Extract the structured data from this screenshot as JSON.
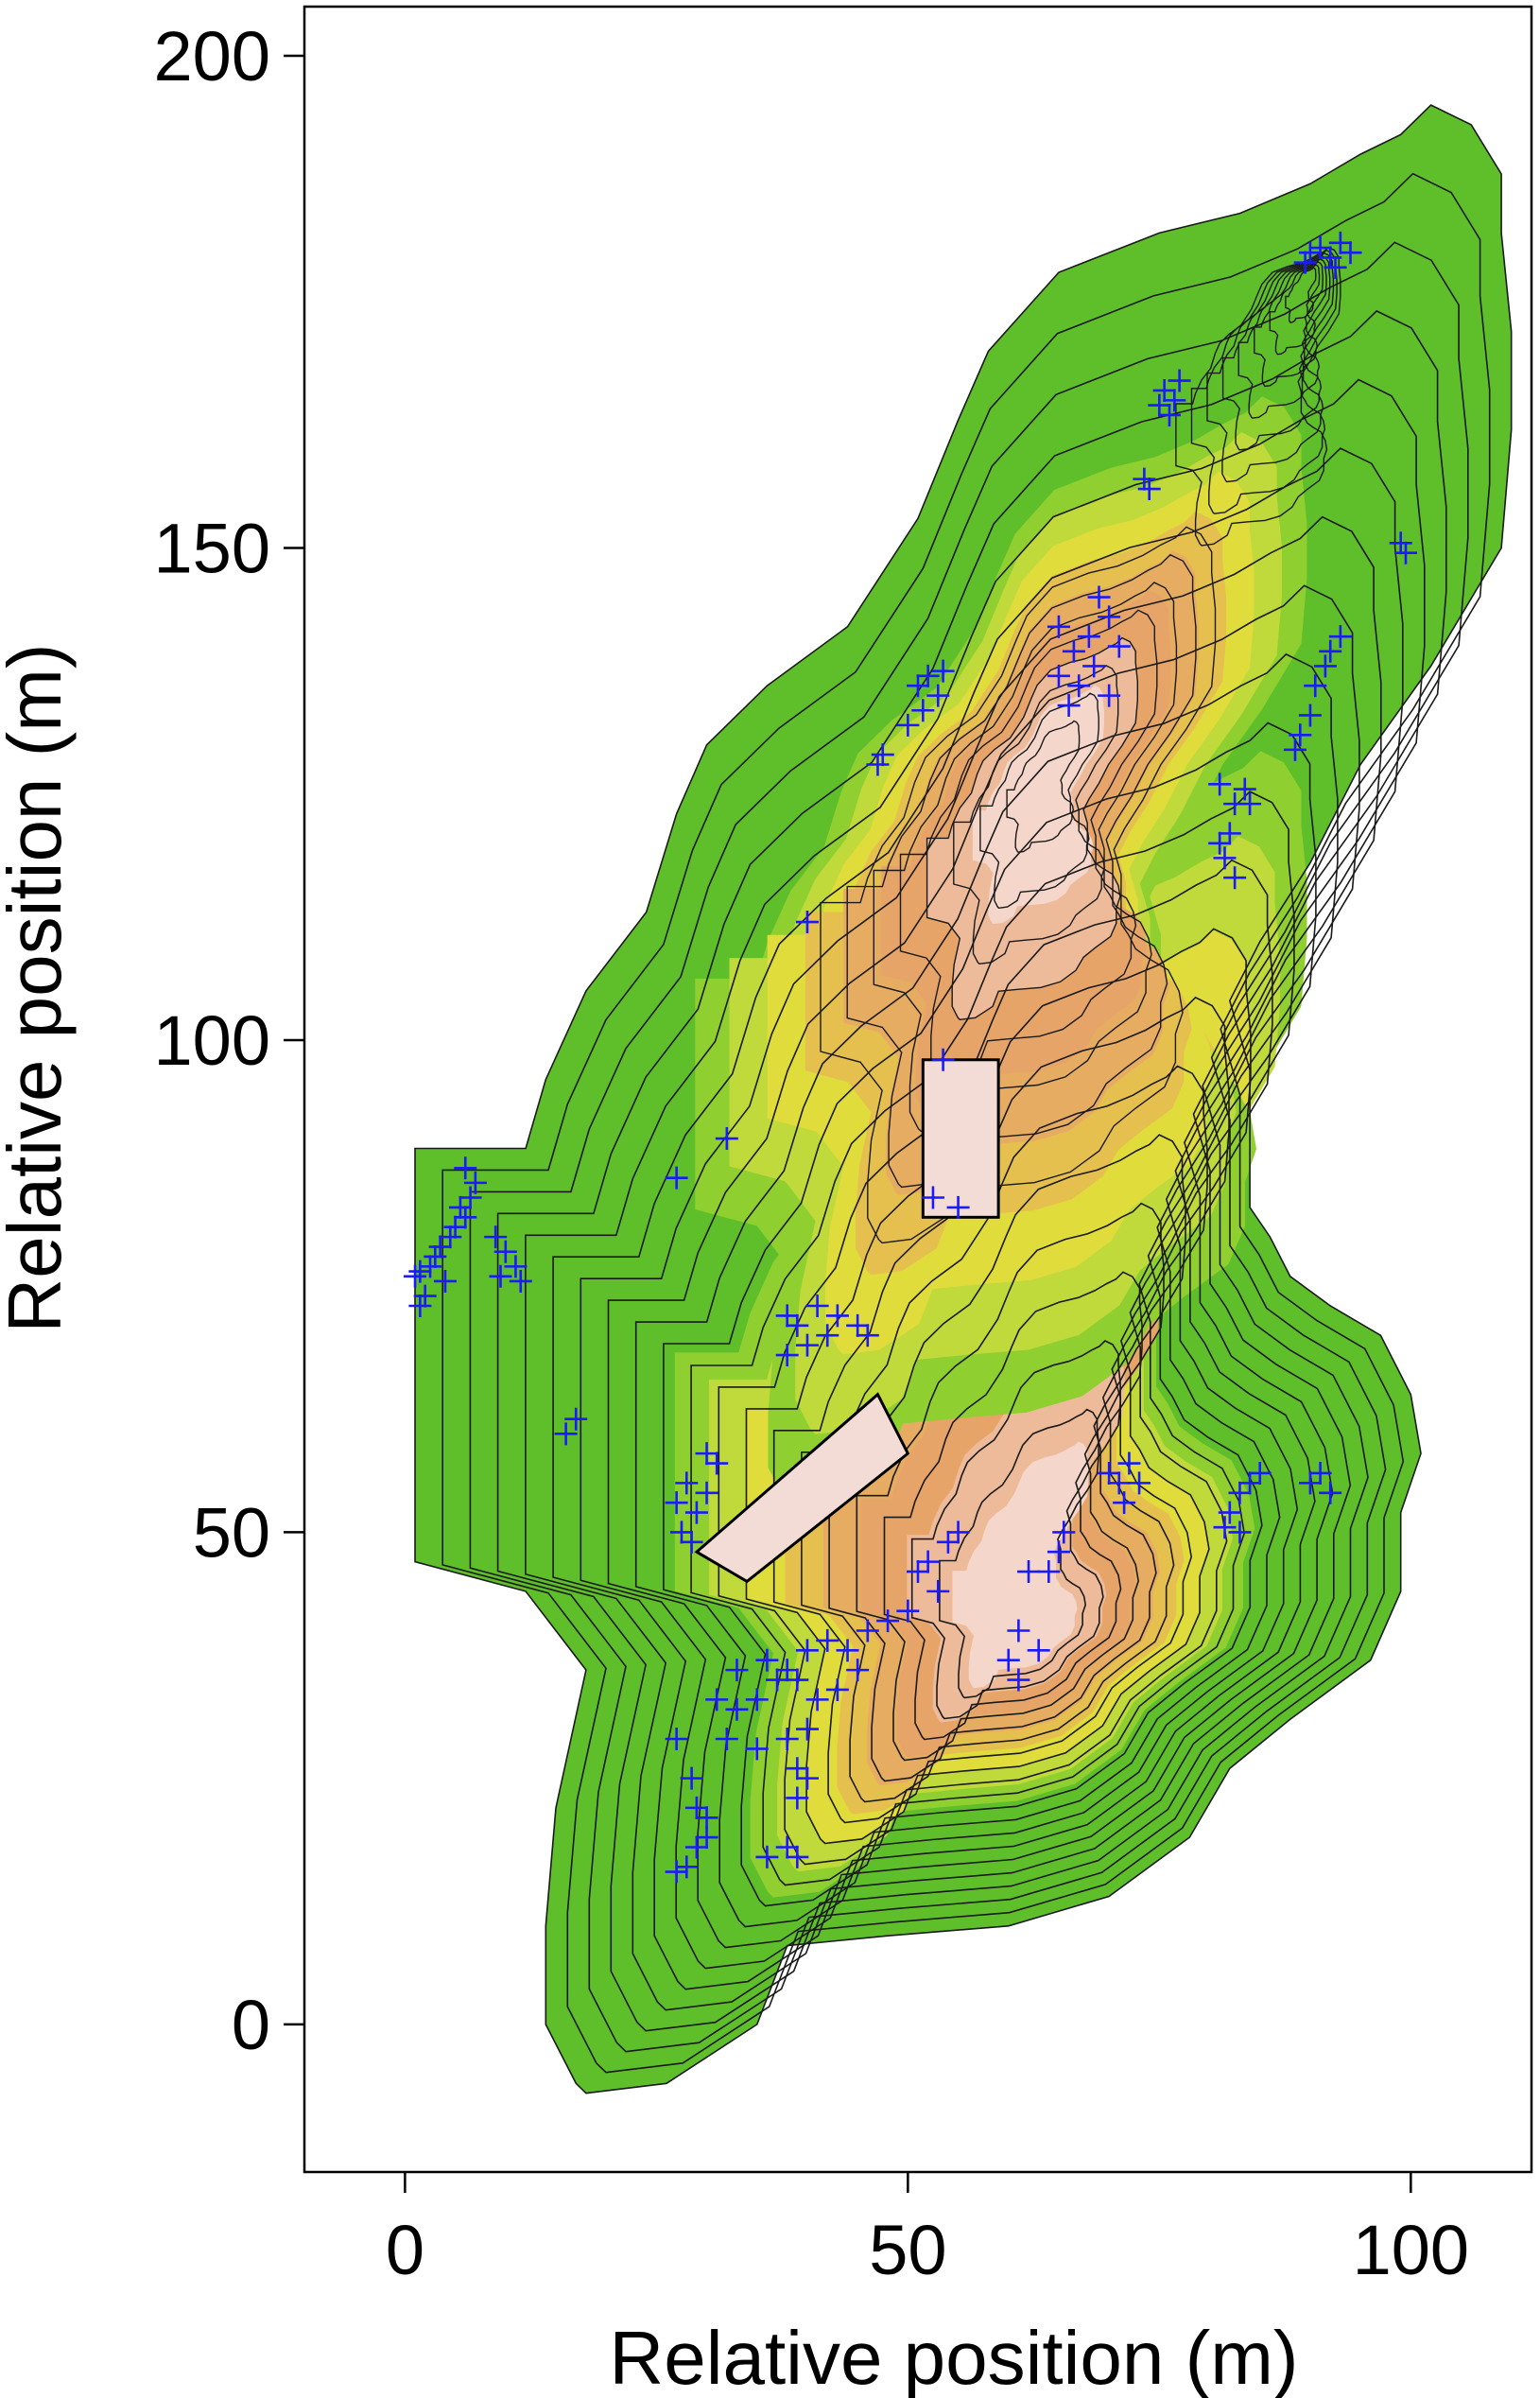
{
  "chart_data": {
    "type": "scatter",
    "title": "",
    "xlabel": "Relative position (m)",
    "ylabel": "Relative position (m)",
    "xlim": [
      -10,
      112
    ],
    "ylim": [
      -15,
      205
    ],
    "xticks": [
      0,
      50,
      100
    ],
    "yticks": [
      0,
      50,
      100,
      150,
      200
    ],
    "xtick_labels": [
      "0",
      "50",
      "100"
    ],
    "ytick_labels": [
      "0",
      "50",
      "100",
      "150",
      "200"
    ],
    "grid": false,
    "legend": "none",
    "background": "contour map of relative elevation (green = low, yellow = mid, orange/pink = high)",
    "marker": {
      "symbol": "+",
      "color": "#1a1aff"
    },
    "colors": {
      "low": "#5fbf2a",
      "mid": "#e3df3a",
      "high": "#e6a468",
      "peak": "#f4dcd6",
      "contour": "#1a1a1a",
      "marker": "#1a1aff"
    },
    "series": [
      {
        "points": [
          [
            90,
            180
          ],
          [
            91,
            180.5
          ],
          [
            92,
            179.5
          ],
          [
            93,
            181
          ],
          [
            94,
            180
          ],
          [
            89.5,
            179
          ],
          [
            92.5,
            178.5
          ],
          [
            75.5,
            166
          ],
          [
            76.5,
            165
          ],
          [
            77,
            167
          ],
          [
            75,
            164.5
          ],
          [
            76,
            163.5
          ],
          [
            73.5,
            157
          ],
          [
            74,
            156
          ],
          [
            99,
            150.5
          ],
          [
            99.5,
            149.5
          ],
          [
            93,
            141
          ],
          [
            91.5,
            138
          ],
          [
            90.5,
            136
          ],
          [
            90,
            133
          ],
          [
            89,
            131
          ],
          [
            88.5,
            129.5
          ],
          [
            92,
            139.5
          ],
          [
            81,
            126
          ],
          [
            82.5,
            124
          ],
          [
            83.5,
            125.5
          ],
          [
            82,
            121
          ],
          [
            81.5,
            118.5
          ],
          [
            82.5,
            116.5
          ],
          [
            84,
            124
          ],
          [
            81,
            120
          ],
          [
            69,
            145
          ],
          [
            70,
            143
          ],
          [
            68,
            141
          ],
          [
            65,
            142
          ],
          [
            66.5,
            139.5
          ],
          [
            65,
            137
          ],
          [
            67,
            136
          ],
          [
            68.5,
            138
          ],
          [
            71,
            140
          ],
          [
            66,
            134
          ],
          [
            70,
            135
          ],
          [
            52,
            137
          ],
          [
            53,
            135
          ],
          [
            51,
            136
          ],
          [
            50,
            132
          ],
          [
            53.5,
            137.5
          ],
          [
            51.5,
            133.5
          ],
          [
            47.5,
            129
          ],
          [
            47,
            128
          ],
          [
            40,
            112
          ],
          [
            53.5,
            98
          ],
          [
            52.5,
            84
          ],
          [
            55,
            83
          ],
          [
            32,
            90
          ],
          [
            27,
            86
          ],
          [
            6,
            87
          ],
          [
            7,
            85.5
          ],
          [
            6.5,
            84
          ],
          [
            5.5,
            83
          ],
          [
            6,
            82
          ],
          [
            5,
            81
          ],
          [
            4.5,
            80
          ],
          [
            3.5,
            79
          ],
          [
            3,
            78
          ],
          [
            2.5,
            77
          ],
          [
            1.5,
            76.5
          ],
          [
            1,
            76
          ],
          [
            4,
            75.5
          ],
          [
            2,
            74
          ],
          [
            1.5,
            73
          ],
          [
            9,
            80
          ],
          [
            10,
            78.5
          ],
          [
            11,
            77
          ],
          [
            9.5,
            76
          ],
          [
            11.5,
            75.5
          ],
          [
            16,
            60
          ],
          [
            17,
            61.5
          ],
          [
            38,
            72
          ],
          [
            39,
            71
          ],
          [
            41,
            73
          ],
          [
            42,
            70
          ],
          [
            43,
            72
          ],
          [
            45,
            71
          ],
          [
            46,
            70
          ],
          [
            38,
            68
          ],
          [
            40,
            69
          ],
          [
            30,
            58
          ],
          [
            31,
            57
          ],
          [
            28,
            55
          ],
          [
            27,
            53
          ],
          [
            29,
            52
          ],
          [
            27.5,
            50
          ],
          [
            30,
            54
          ],
          [
            28.5,
            49
          ],
          [
            54,
            49
          ],
          [
            55,
            50
          ],
          [
            52,
            47
          ],
          [
            51,
            46
          ],
          [
            53,
            44
          ],
          [
            50,
            42
          ],
          [
            48,
            41
          ],
          [
            46,
            40
          ],
          [
            44,
            38
          ],
          [
            42,
            39
          ],
          [
            40,
            38
          ],
          [
            38,
            36
          ],
          [
            37,
            35
          ],
          [
            35,
            33
          ],
          [
            33,
            32
          ],
          [
            31,
            33
          ],
          [
            33,
            36
          ],
          [
            36,
            37
          ],
          [
            39,
            35
          ],
          [
            41,
            33
          ],
          [
            43,
            34
          ],
          [
            45,
            36
          ],
          [
            40,
            30
          ],
          [
            38,
            29
          ],
          [
            35,
            28
          ],
          [
            32,
            29
          ],
          [
            27,
            29
          ],
          [
            28.5,
            25
          ],
          [
            29,
            22
          ],
          [
            30,
            21
          ],
          [
            29,
            18
          ],
          [
            28,
            16
          ],
          [
            27,
            15.5
          ],
          [
            30,
            19
          ],
          [
            38,
            18
          ],
          [
            39,
            17
          ],
          [
            36,
            17
          ],
          [
            39,
            26
          ],
          [
            40,
            25
          ],
          [
            39,
            23
          ],
          [
            61,
            40
          ],
          [
            60,
            37
          ],
          [
            61,
            35
          ],
          [
            63,
            38
          ],
          [
            65,
            48
          ],
          [
            65.5,
            50
          ],
          [
            64,
            46
          ],
          [
            62,
            46
          ],
          [
            70,
            56
          ],
          [
            71,
            55
          ],
          [
            72,
            57
          ],
          [
            73,
            55
          ],
          [
            71.5,
            53
          ],
          [
            83,
            54
          ],
          [
            84,
            55
          ],
          [
            85,
            56
          ],
          [
            82,
            52
          ],
          [
            83,
            50
          ],
          [
            81.5,
            50.5
          ],
          [
            90,
            55
          ],
          [
            91,
            56
          ],
          [
            92,
            54
          ]
        ]
      }
    ]
  }
}
